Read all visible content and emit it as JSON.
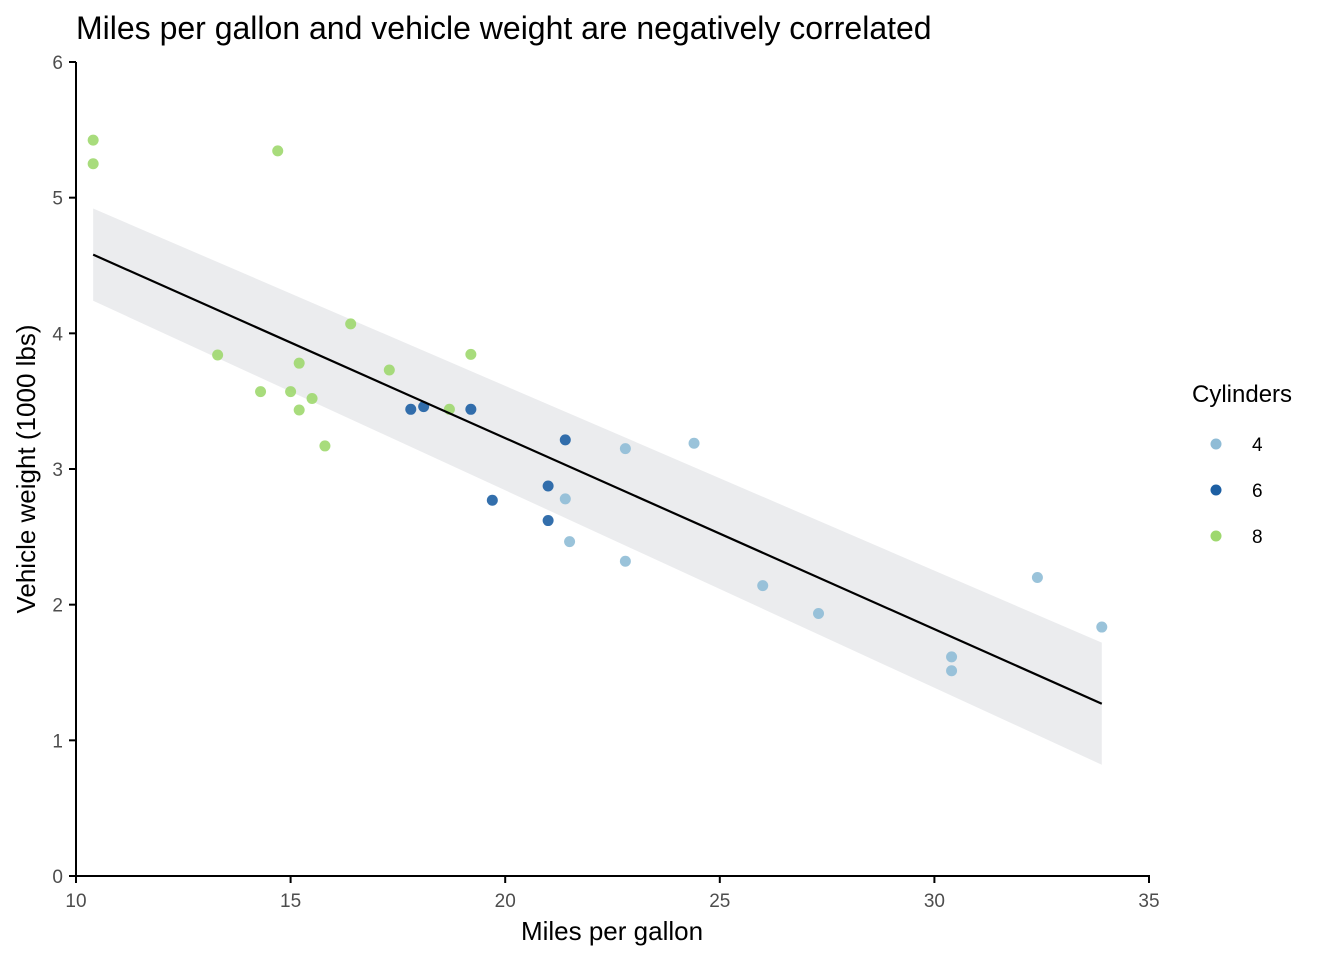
{
  "chart_data": {
    "type": "scatter",
    "title": "Miles per gallon and vehicle weight are negatively correlated",
    "xlabel": "Miles per gallon",
    "ylabel": "Vehicle weight (1000 lbs)",
    "xlim": [
      10,
      35
    ],
    "ylim": [
      0,
      6
    ],
    "x_ticks": [
      10,
      15,
      20,
      25,
      30,
      35
    ],
    "y_ticks": [
      0,
      1,
      2,
      3,
      4,
      5,
      6
    ],
    "grid": false,
    "legend": {
      "title": "Cylinders",
      "position": "right",
      "entries": [
        {
          "label": "4",
          "color": "#8fbcd6"
        },
        {
          "label": "6",
          "color": "#1d5fa3"
        },
        {
          "label": "8",
          "color": "#9ed86e"
        }
      ]
    },
    "series": [
      {
        "name": "4",
        "color": "#8fbcd6",
        "points": [
          [
            22.8,
            3.15
          ],
          [
            24.4,
            3.19
          ],
          [
            22.8,
            2.32
          ],
          [
            32.4,
            2.2
          ],
          [
            30.4,
            1.615
          ],
          [
            33.9,
            1.835
          ],
          [
            21.5,
            2.465
          ],
          [
            27.3,
            1.935
          ],
          [
            26.0,
            2.14
          ],
          [
            30.4,
            1.513
          ],
          [
            21.4,
            2.78
          ]
        ]
      },
      {
        "name": "6",
        "color": "#1d5fa3",
        "points": [
          [
            21.0,
            2.62
          ],
          [
            21.0,
            2.875
          ],
          [
            21.4,
            3.215
          ],
          [
            18.1,
            3.46
          ],
          [
            19.2,
            3.44
          ],
          [
            17.8,
            3.44
          ],
          [
            19.7,
            2.77
          ]
        ]
      },
      {
        "name": "8",
        "color": "#9ed86e",
        "points": [
          [
            18.7,
            3.44
          ],
          [
            14.3,
            3.57
          ],
          [
            16.4,
            4.07
          ],
          [
            17.3,
            3.73
          ],
          [
            15.2,
            3.78
          ],
          [
            10.4,
            5.25
          ],
          [
            10.4,
            5.424
          ],
          [
            14.7,
            5.345
          ],
          [
            15.5,
            3.52
          ],
          [
            15.2,
            3.435
          ],
          [
            13.3,
            3.84
          ],
          [
            19.2,
            3.845
          ],
          [
            15.8,
            3.17
          ],
          [
            15.0,
            3.57
          ]
        ]
      }
    ],
    "trend_line": {
      "method": "linear",
      "x_range": [
        10.4,
        33.9
      ],
      "y_at_start": 4.58,
      "y_at_end": 1.27,
      "ci_lower_at_start": 4.24,
      "ci_upper_at_start": 4.92,
      "ci_lower_at_end": 0.82,
      "ci_upper_at_end": 1.72,
      "line_color": "#000000",
      "band_color": "#ebecee"
    }
  }
}
